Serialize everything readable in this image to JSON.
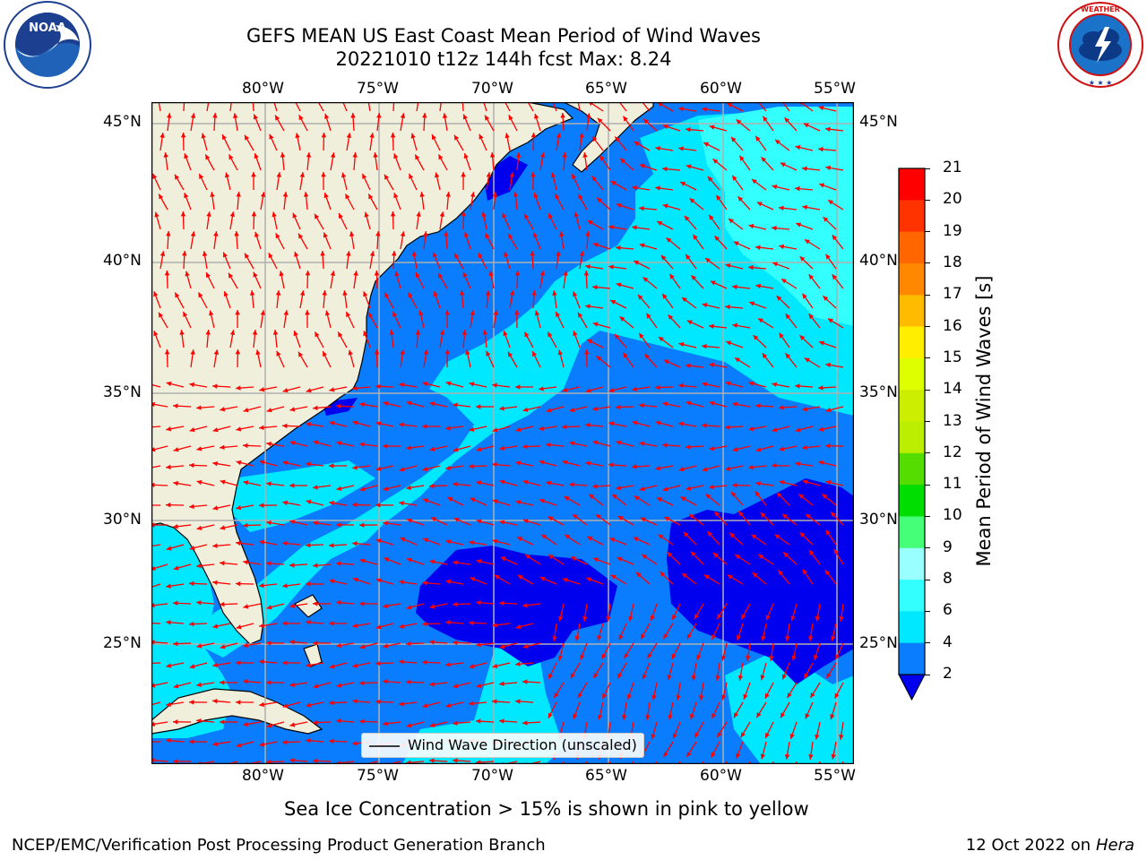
{
  "header": {
    "title_line1": "GEFS MEAN US East Coast Mean Period of Wind Waves",
    "title_line2": "20221010 t12z 144h fcst   Max: 8.24"
  },
  "logos": {
    "left": {
      "name": "noaa-logo",
      "text": "NOAA",
      "ring_text": "NATIONAL OCEANIC AND ATMOSPHERIC ADMINISTRATION · U.S. DEPARTMENT OF COMMERCE"
    },
    "right": {
      "name": "nws-logo",
      "ring_text": "NATIONAL WEATHER SERVICE"
    }
  },
  "map": {
    "lon_labels": [
      "80°W",
      "75°W",
      "70°W",
      "65°W",
      "60°W",
      "55°W"
    ],
    "lat_labels": [
      "45°N",
      "40°N",
      "35°N",
      "30°N",
      "25°N"
    ],
    "legend_label": "Wind Wave Direction (unscaled)",
    "land_color": "#efefdc",
    "arrow_color": "#ff0000",
    "grid_color": "#b0b0b0"
  },
  "colorbar": {
    "label": "Mean Period of Wind Waves [s]",
    "ticks": [
      "21",
      "20",
      "19",
      "18",
      "17",
      "16",
      "15",
      "14",
      "13",
      "12",
      "11",
      "10",
      "9",
      "8",
      "6",
      "4",
      "2"
    ],
    "bands": [
      {
        "from": 2,
        "to": 4,
        "color": "#0a7dff"
      },
      {
        "from": 4,
        "to": 6,
        "color": "#00e8ff"
      },
      {
        "from": 6,
        "to": 8,
        "color": "#33ffff"
      },
      {
        "from": 8,
        "to": 9,
        "color": "#99ffff"
      },
      {
        "from": 9,
        "to": 10,
        "color": "#44ff77"
      },
      {
        "from": 10,
        "to": 11,
        "color": "#00dd00"
      },
      {
        "from": 11,
        "to": 12,
        "color": "#55dd00"
      },
      {
        "from": 12,
        "to": 13,
        "color": "#bbee00"
      },
      {
        "from": 13,
        "to": 14,
        "color": "#ccee00"
      },
      {
        "from": 14,
        "to": 15,
        "color": "#ddff00"
      },
      {
        "from": 15,
        "to": 16,
        "color": "#ffee00"
      },
      {
        "from": 16,
        "to": 17,
        "color": "#ffbb00"
      },
      {
        "from": 17,
        "to": 18,
        "color": "#ff8800"
      },
      {
        "from": 18,
        "to": 19,
        "color": "#ff6600"
      },
      {
        "from": 19,
        "to": 20,
        "color": "#ff3300"
      },
      {
        "from": 20,
        "to": 21,
        "color": "#ff0000"
      }
    ],
    "under_color": "#0000ee"
  },
  "caption": "Sea Ice Concentration > 15% is shown in pink to yellow",
  "footer": {
    "left": "NCEP/EMC/Verification Post Processing Product Generation Branch",
    "right_date": "12 Oct 2022 on ",
    "right_machine": "Hera"
  }
}
